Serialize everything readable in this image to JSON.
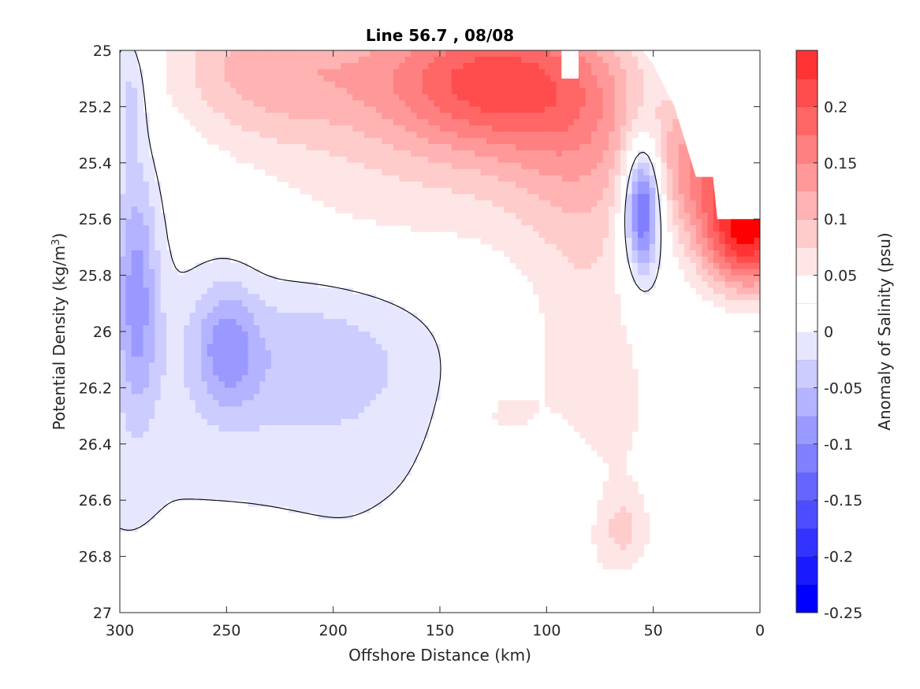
{
  "chart_data": {
    "type": "heatmap",
    "title": "Line 56.7 , 08/08",
    "xlabel": "Offshore Distance (km)",
    "ylabel_main": "Potential Density (kg/m",
    "ylabel_sup": "3",
    "ylabel_close": ")",
    "colorbar_label": "Anomaly of Salinity (psu)",
    "xlim": [
      300,
      0
    ],
    "x_reversed": true,
    "ylim": [
      25,
      27
    ],
    "y_reversed": true,
    "x_ticks": [
      300,
      250,
      200,
      150,
      100,
      50,
      0
    ],
    "x_tick_labels": [
      "300",
      "250",
      "200",
      "150",
      "100",
      "50",
      "0"
    ],
    "y_ticks": [
      25,
      25.2,
      25.4,
      25.6,
      25.8,
      26,
      26.2,
      26.4,
      26.6,
      26.8,
      27
    ],
    "y_tick_labels": [
      "25",
      "25.2",
      "25.4",
      "25.6",
      "25.8",
      "26",
      "26.2",
      "26.4",
      "26.6",
      "26.8",
      "27"
    ],
    "colorbar_range": [
      -0.25,
      0.25
    ],
    "colorbar_ticks": [
      0.2,
      0.15,
      0.1,
      0.05,
      0,
      -0.05,
      -0.1,
      -0.15,
      -0.2,
      -0.25
    ],
    "colorbar_tick_labels": [
      "0.2",
      "0.15",
      "0.1",
      "0.05",
      "0",
      "-0.05",
      "-0.1",
      "-0.15",
      "-0.2",
      "-0.25"
    ],
    "contour_levels": [
      -0.25,
      -0.225,
      -0.2,
      -0.175,
      -0.15,
      -0.125,
      -0.1,
      -0.075,
      -0.05,
      -0.025,
      0,
      0.025,
      0.05,
      0.075,
      0.1,
      0.125,
      0.15,
      0.175,
      0.2,
      0.225,
      0.25
    ],
    "level_colors": [
      "#0000ff",
      "#1a1aff",
      "#3333ff",
      "#4d4dff",
      "#6666ff",
      "#8080ff",
      "#9999ff",
      "#b3b3ff",
      "#ccccff",
      "#e6e6ff",
      "#ffffff",
      "#ffffff",
      "#ffe6e6",
      "#ffcccc",
      "#ffb3b3",
      "#ff9999",
      "#ff8080",
      "#ff6666",
      "#ff4d4d",
      "#ff3333",
      "#ff0000"
    ],
    "zero_contour_color": "#000000",
    "no_data_color": "#ffffff",
    "grid": false
  }
}
